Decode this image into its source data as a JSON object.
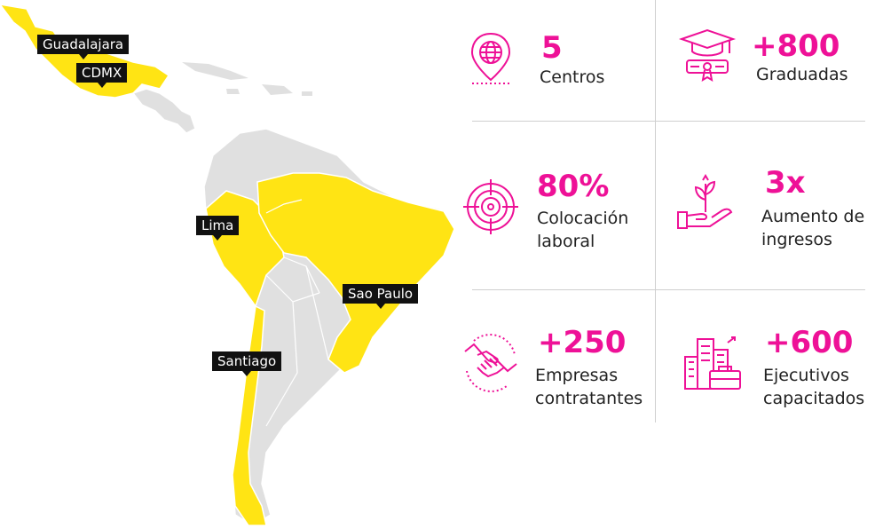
{
  "colors": {
    "accent": "#ee1197",
    "highlight": "#ffe414",
    "land": "#e0e0e0",
    "pin": "#111111"
  },
  "map": {
    "pins": {
      "guadalajara": "Guadalajara",
      "cdmx": "CDMX",
      "lima": "Lima",
      "sao_paulo": "Sao Paulo",
      "santiago": "Santiago"
    }
  },
  "stats": {
    "centros": {
      "value": "5",
      "label": "Centros",
      "icon": "globe-location-icon"
    },
    "graduadas": {
      "value": "+800",
      "label": "Graduadas",
      "icon": "graduation-diploma-icon"
    },
    "colocacion": {
      "value": "80%",
      "label_1": "Colocación",
      "label_2": "laboral",
      "icon": "target-icon"
    },
    "ingresos": {
      "value": "3x",
      "label_1": "Aumento de",
      "label_2": "ingresos",
      "icon": "hand-plant-growth-icon"
    },
    "empresas": {
      "value": "+250",
      "label_1": "Empresas",
      "label_2": "contratantes",
      "icon": "handshake-icon"
    },
    "ejecutivos": {
      "value": "+600",
      "label_1": "Ejecutivos",
      "label_2": "capacitados",
      "icon": "city-briefcase-icon"
    }
  }
}
